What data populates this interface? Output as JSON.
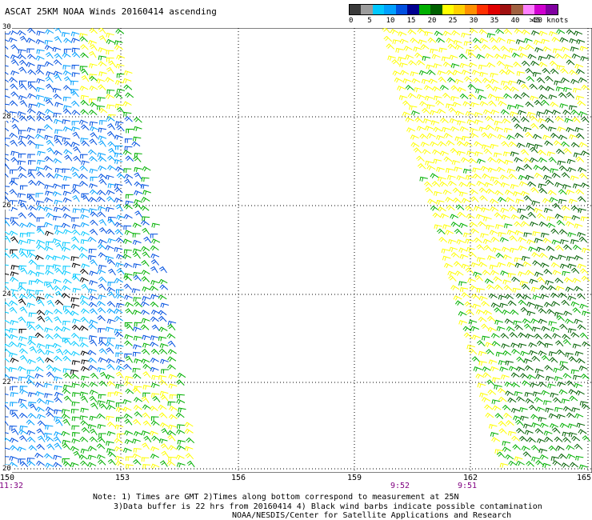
{
  "title": "ASCAT 25KM NOAA Winds 20160414 ascending",
  "legend": {
    "colors": [
      "#3a3a3a",
      "#9c9c9c",
      "#00c8ff",
      "#00a0ff",
      "#0050e0",
      "#000090",
      "#00b000",
      "#006000",
      "#ffff00",
      "#ffd000",
      "#ff9000",
      "#ff3000",
      "#e00000",
      "#a01010",
      "#a06040",
      "#ff80ff",
      "#d000d0",
      "#8000a0"
    ],
    "labels": [
      "0",
      "5",
      "10",
      "15",
      "20",
      "25",
      "30",
      "35",
      "40",
      "45",
      ">50 knots"
    ]
  },
  "latitudes": [
    "30",
    "28",
    "26",
    "24",
    "22",
    "20"
  ],
  "longitudes": [
    "150",
    "153",
    "156",
    "159",
    "162",
    "165"
  ],
  "times": [
    "11:32",
    "9:52",
    "9:51"
  ],
  "notes": [
    "Note: 1) Times are GMT 2)Times along bottom correspond to measurement at 25N",
    "3)Data buffer is 22 hrs from 20160414 4) Black wind barbs indicate possible contamination",
    "NOAA/NESDIS/Center for Satellite Applications and Research"
  ],
  "swaths": [
    {
      "name": "west-swath",
      "region": "150E-155E"
    },
    {
      "name": "east-swath",
      "region": "159E-165E"
    }
  ]
}
